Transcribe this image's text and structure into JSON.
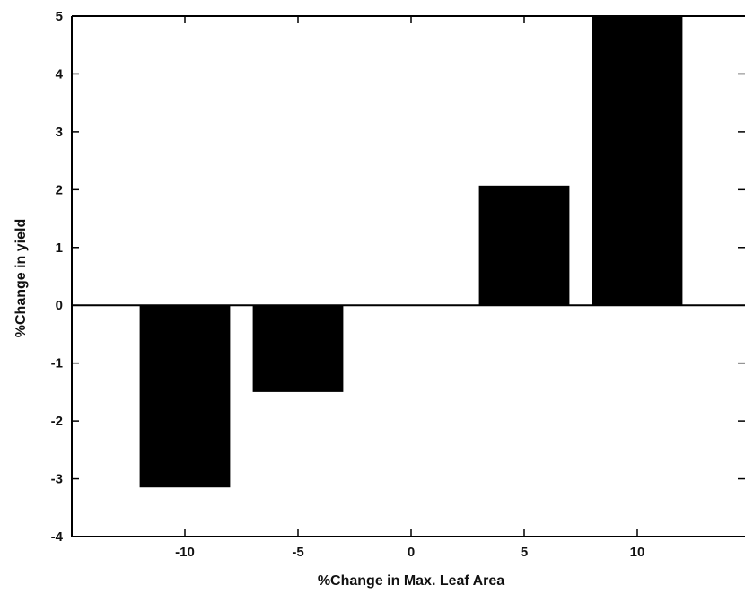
{
  "chart_data": {
    "type": "bar",
    "x": [
      -10,
      -5,
      0,
      5,
      10
    ],
    "values": [
      -3.15,
      -1.5,
      0,
      2.07,
      5
    ],
    "xlabel": "%Change in Max. Leaf Area",
    "ylabel": "%Change in yield",
    "xlim": [
      -15,
      15
    ],
    "ylim": [
      -4,
      5
    ],
    "x_ticks": [
      -10,
      -5,
      0,
      5,
      10
    ],
    "y_ticks": [
      -4,
      -3,
      -2,
      -1,
      0,
      1,
      2,
      3,
      4,
      5
    ],
    "x_tick_labels": [
      "-10",
      "-5",
      "0",
      "5",
      "10"
    ],
    "y_tick_labels": [
      "-4",
      "-3",
      "-2",
      "-1",
      "0",
      "1",
      "2",
      "3",
      "4",
      "5"
    ],
    "bar_width": 4,
    "grid": false,
    "bar_color": "#000000"
  }
}
